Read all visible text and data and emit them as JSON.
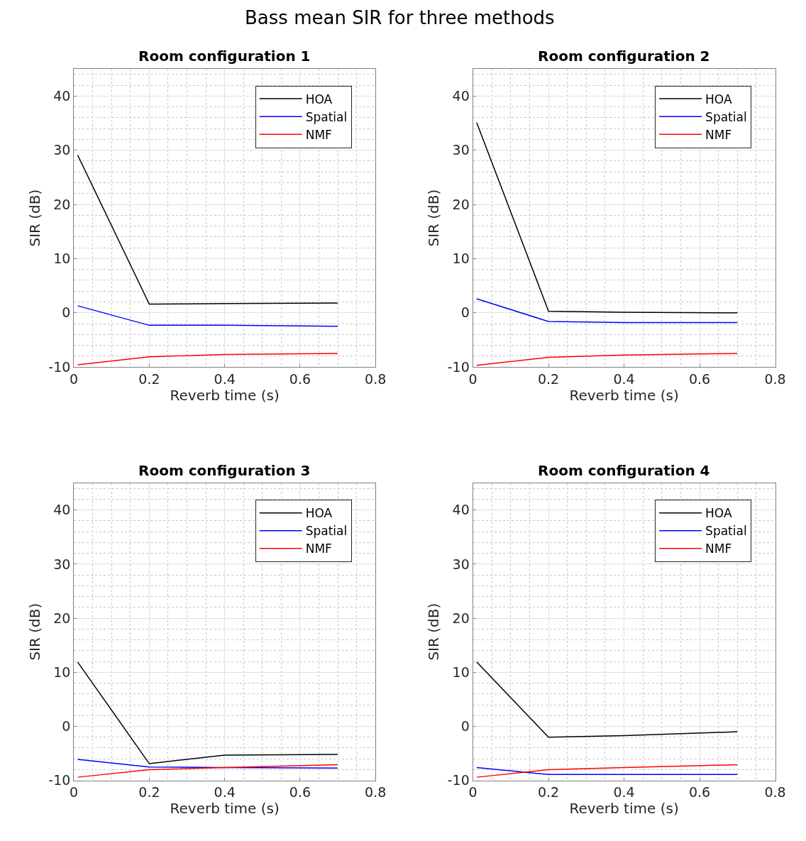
{
  "chart_data": [
    {
      "type": "line",
      "title": "Room configuration 1",
      "annotations": [
        "Bass mean SIR for three methods"
      ],
      "xlabel": "Reverb time (s)",
      "ylabel": "SIR (dB)",
      "x": [
        0.01,
        0.2,
        0.4,
        0.7
      ],
      "series": [
        {
          "name": "HOA",
          "color": "#000000",
          "values": [
            29.1,
            1.6,
            1.7,
            1.8
          ]
        },
        {
          "name": "Spatial",
          "color": "#0000ff",
          "values": [
            1.3,
            -2.3,
            -2.3,
            -2.5
          ]
        },
        {
          "name": "NMF",
          "color": "#ff0000",
          "values": [
            -9.6,
            -8.1,
            -7.7,
            -7.5
          ]
        }
      ],
      "xlim": [
        0,
        0.8
      ],
      "ylim": [
        -10,
        45
      ],
      "xticks": [
        0,
        0.2,
        0.4,
        0.6,
        0.8
      ],
      "yticks": [
        -10,
        0,
        10,
        20,
        30,
        40
      ],
      "grid": true,
      "legend": "top right"
    },
    {
      "type": "line",
      "title": "Room configuration 2",
      "xlabel": "Reverb time (s)",
      "ylabel": "SIR (dB)",
      "x": [
        0.01,
        0.2,
        0.4,
        0.7
      ],
      "series": [
        {
          "name": "HOA",
          "color": "#000000",
          "values": [
            35.1,
            0.3,
            0.1,
            0.0
          ]
        },
        {
          "name": "Spatial",
          "color": "#0000ff",
          "values": [
            2.6,
            -1.6,
            -1.8,
            -1.8
          ]
        },
        {
          "name": "NMF",
          "color": "#ff0000",
          "values": [
            -9.7,
            -8.2,
            -7.8,
            -7.5
          ]
        }
      ],
      "xlim": [
        0,
        0.8
      ],
      "ylim": [
        -10,
        45
      ],
      "xticks": [
        0,
        0.2,
        0.4,
        0.6,
        0.8
      ],
      "yticks": [
        -10,
        0,
        10,
        20,
        30,
        40
      ],
      "grid": true,
      "legend": "top right"
    },
    {
      "type": "line",
      "title": "Room configuration 3",
      "xlabel": "Reverb time (s)",
      "ylabel": "SIR (dB)",
      "x": [
        0.01,
        0.2,
        0.4,
        0.7
      ],
      "series": [
        {
          "name": "HOA",
          "color": "#000000",
          "values": [
            11.9,
            -6.9,
            -5.3,
            -5.2
          ]
        },
        {
          "name": "Spatial",
          "color": "#0000ff",
          "values": [
            -6.1,
            -7.5,
            -7.6,
            -7.7
          ]
        },
        {
          "name": "NMF",
          "color": "#ff0000",
          "values": [
            -9.4,
            -8.0,
            -7.6,
            -7.1
          ]
        }
      ],
      "xlim": [
        0,
        0.8
      ],
      "ylim": [
        -10,
        45
      ],
      "xticks": [
        0,
        0.2,
        0.4,
        0.6,
        0.8
      ],
      "yticks": [
        -10,
        0,
        10,
        20,
        30,
        40
      ],
      "grid": true,
      "legend": "top right"
    },
    {
      "type": "line",
      "title": "Room configuration 4",
      "xlabel": "Reverb time (s)",
      "ylabel": "SIR (dB)",
      "x": [
        0.01,
        0.2,
        0.4,
        0.7
      ],
      "series": [
        {
          "name": "HOA",
          "color": "#000000",
          "values": [
            11.9,
            -2.0,
            -1.7,
            -1.0
          ]
        },
        {
          "name": "Spatial",
          "color": "#0000ff",
          "values": [
            -7.6,
            -8.9,
            -8.9,
            -8.9
          ]
        },
        {
          "name": "NMF",
          "color": "#ff0000",
          "values": [
            -9.4,
            -8.0,
            -7.6,
            -7.1
          ]
        }
      ],
      "xlim": [
        0,
        0.8
      ],
      "ylim": [
        -10,
        45
      ],
      "xticks": [
        0,
        0.2,
        0.4,
        0.6,
        0.8
      ],
      "yticks": [
        -10,
        0,
        10,
        20,
        30,
        40
      ],
      "grid": true,
      "legend": "top right"
    }
  ]
}
